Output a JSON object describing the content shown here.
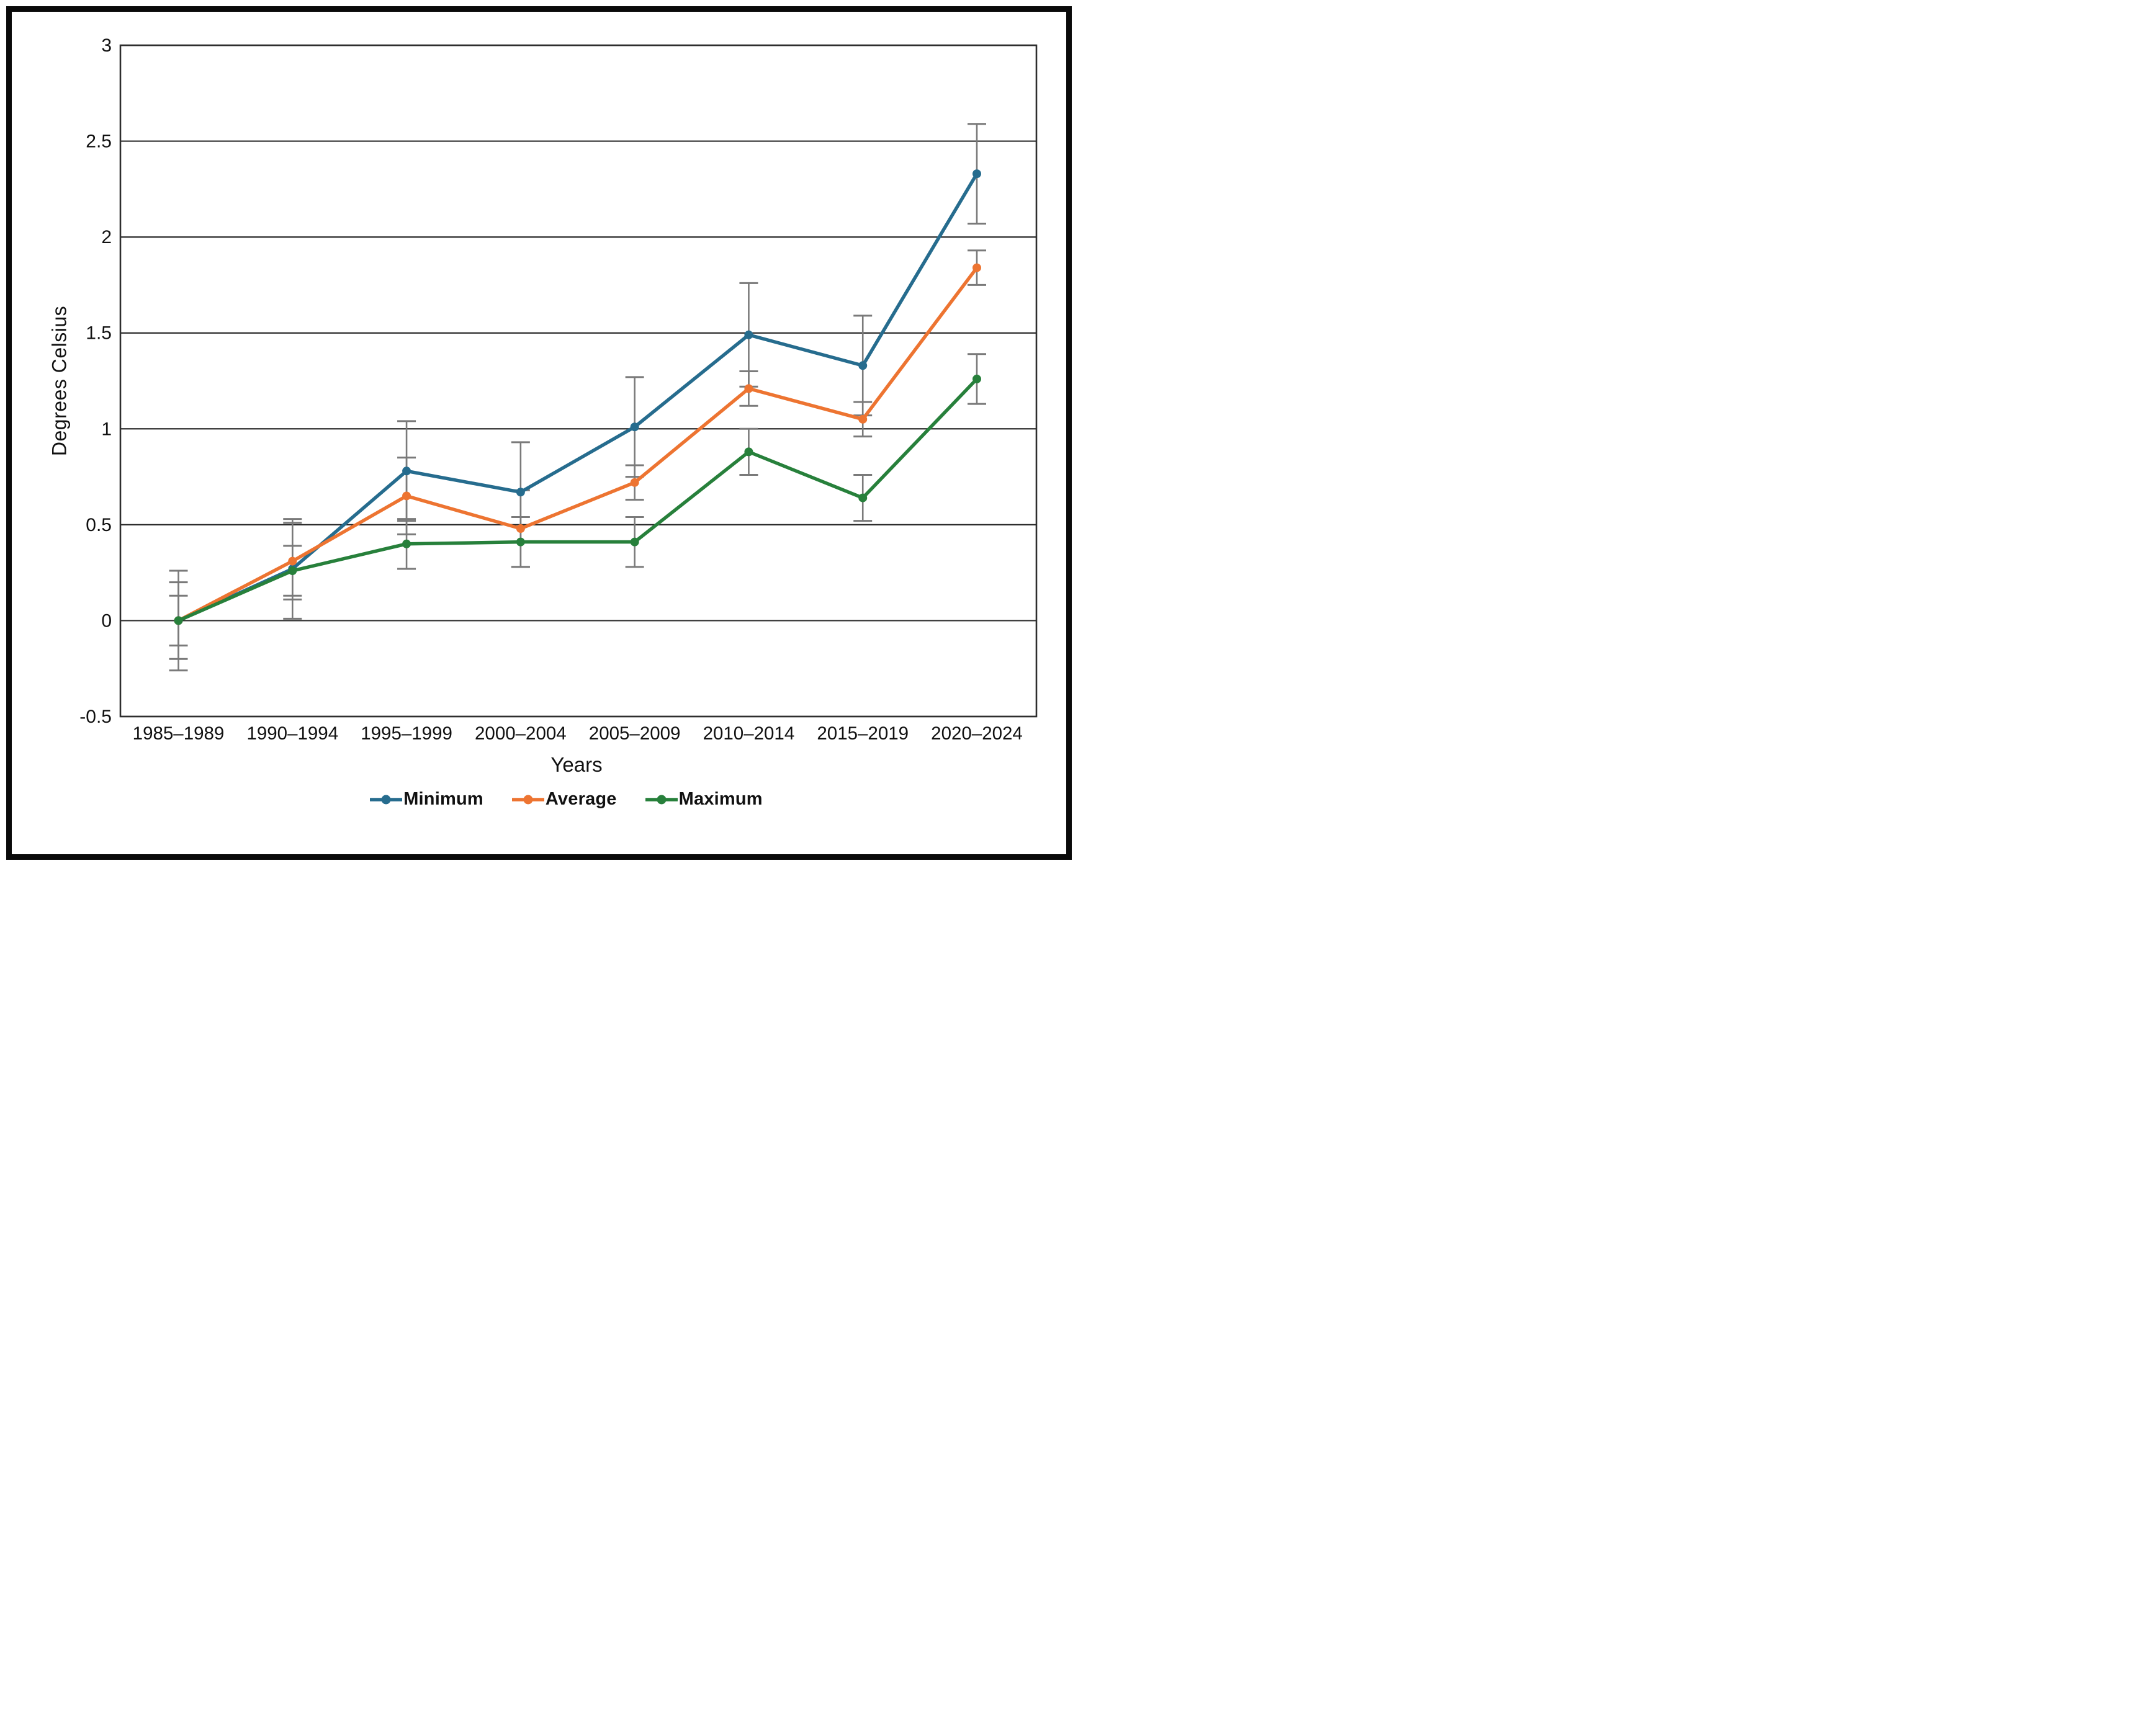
{
  "chart_data": {
    "type": "line",
    "title": "",
    "xlabel": "Years",
    "ylabel": "Degrees Celsius",
    "categories": [
      "1985–1989",
      "1990–1994",
      "1995–1999",
      "2000–2004",
      "2005–2009",
      "2010–2014",
      "2015–2019",
      "2020–2024"
    ],
    "y_ticks": [
      "3",
      "2.5",
      "2",
      "1.5",
      "1",
      "0.5",
      "0",
      "-0.5"
    ],
    "y_tick_values": [
      3,
      2.5,
      2,
      1.5,
      1,
      0.5,
      0,
      -0.5
    ],
    "ylim": [
      -0.5,
      3
    ],
    "grid": true,
    "legend_position": "bottom",
    "series": [
      {
        "name": "Minimum",
        "color": "#266C8E",
        "values": [
          0,
          0.27,
          0.78,
          0.67,
          1.01,
          1.49,
          1.33,
          2.33
        ],
        "error": [
          0.26,
          0.26,
          0.26,
          0.26,
          0.26,
          0.27,
          0.26,
          0.26
        ]
      },
      {
        "name": "Average",
        "color": "#ED7431",
        "values": [
          0,
          0.31,
          0.65,
          0.48,
          0.72,
          1.21,
          1.05,
          1.84
        ],
        "error": [
          0.2,
          0.2,
          0.2,
          0.2,
          0.09,
          0.09,
          0.09,
          0.09
        ]
      },
      {
        "name": "Maximum",
        "color": "#27803B",
        "values": [
          0,
          0.26,
          0.4,
          0.41,
          0.41,
          0.88,
          0.64,
          1.26
        ],
        "error": [
          0.13,
          0.13,
          0.13,
          0.13,
          0.13,
          0.12,
          0.12,
          0.13
        ]
      }
    ],
    "error_bar_color": "#7A7A7A",
    "gridline_color": "#2E2E2E",
    "text_color": "#111111"
  }
}
